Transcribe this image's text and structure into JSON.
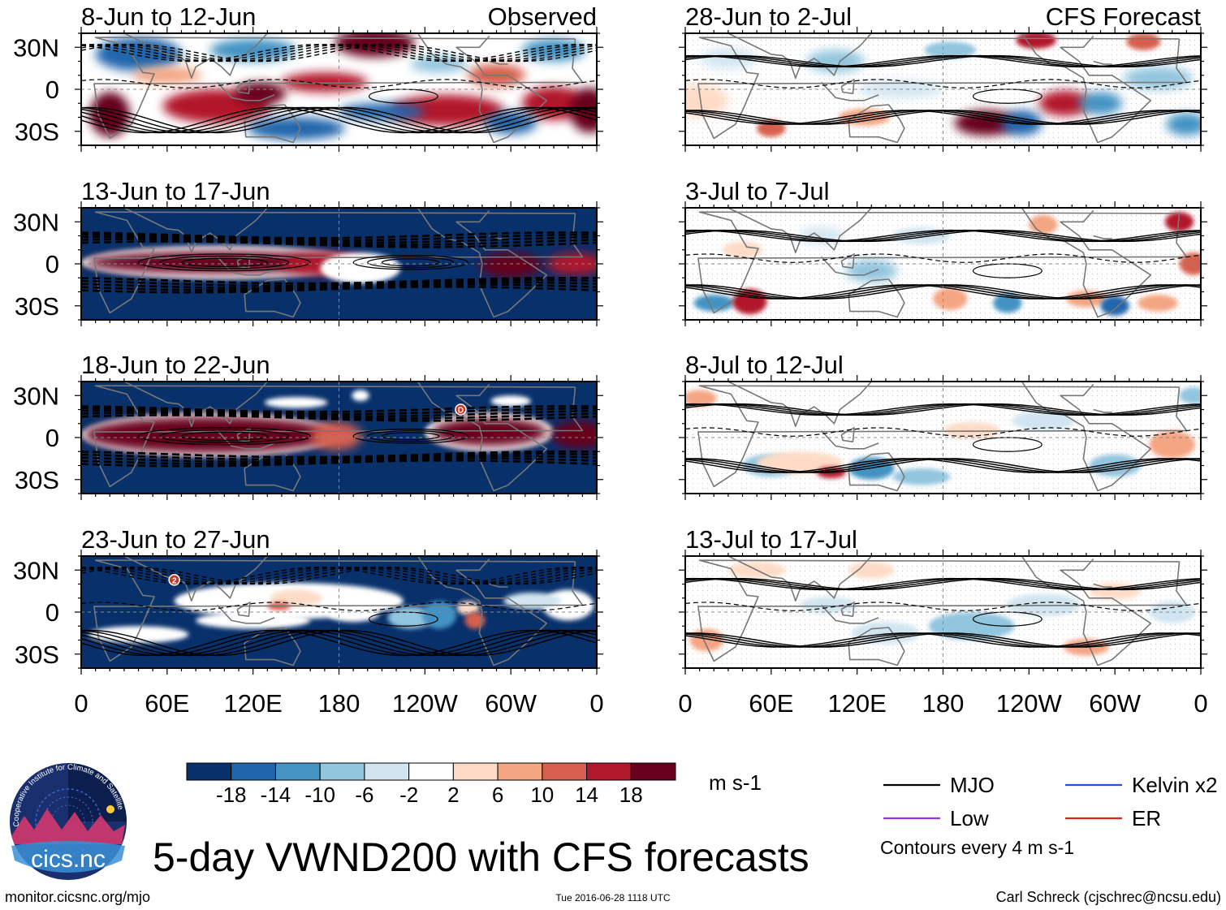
{
  "chart_data": {
    "type": "heatmap",
    "title": "5-day VWND200 with CFS forecasts",
    "variable": "VWND200",
    "units": "m s-1",
    "x_ticks": [
      "0",
      "60E",
      "120E",
      "180",
      "120W",
      "60W",
      "0"
    ],
    "x_ticks_deg": [
      0,
      60,
      120,
      180,
      240,
      300,
      360
    ],
    "y_ticks": [
      "30N",
      "0",
      "30S"
    ],
    "y_ticks_deg": [
      30,
      0,
      -30
    ],
    "xlim": [
      0,
      360
    ],
    "ylim": [
      -40,
      40
    ],
    "columns": [
      {
        "label": "Observed",
        "panels": [
          {
            "period": "8-Jun to 12-Jun",
            "regime": "observed",
            "markers": []
          },
          {
            "period": "13-Jun to 17-Jun",
            "regime": "kelvin",
            "markers": []
          },
          {
            "period": "18-Jun to 22-Jun",
            "regime": "kelvin2",
            "markers": [
              {
                "label": "D",
                "lon": 265,
                "lat": 20
              }
            ]
          },
          {
            "period": "23-Jun to 27-Jun",
            "regime": "weak",
            "markers": [
              {
                "label": "2",
                "lon": 65,
                "lat": 23
              }
            ]
          }
        ]
      },
      {
        "label": "CFS Forecast",
        "panels": [
          {
            "period": "28-Jun to 2-Jul",
            "regime": "fc1",
            "markers": []
          },
          {
            "period": "3-Jul to 7-Jul",
            "regime": "fc2",
            "markers": []
          },
          {
            "period": "8-Jul to 12-Jul",
            "regime": "fc3",
            "markers": []
          },
          {
            "period": "13-Jul to 17-Jul",
            "regime": "fc4",
            "markers": []
          }
        ]
      }
    ],
    "colorbar": {
      "colors": [
        "#08306b",
        "#2166ac",
        "#4393c3",
        "#92c5de",
        "#d1e5f0",
        "#ffffff",
        "#fddbc7",
        "#f4a582",
        "#d6604d",
        "#b2182b",
        "#67001f"
      ],
      "labels": [
        "-18",
        "-14",
        "-10",
        "-6",
        "-2",
        "2",
        "6",
        "10",
        "14",
        "18"
      ],
      "levels": [
        -18,
        -14,
        -10,
        -6,
        -2,
        2,
        6,
        10,
        14,
        18
      ]
    },
    "legend": {
      "items": [
        {
          "label": "MJO",
          "color": "#000000"
        },
        {
          "label": "Kelvin x2",
          "color": "#2255cc"
        },
        {
          "label": "Low",
          "color": "#9933ee"
        },
        {
          "label": "ER",
          "color": "#dd2211"
        }
      ],
      "note": "Contours every 4 m s-1"
    }
  },
  "logo": {
    "text": "cics.nc",
    "arc_text": "Cooperative Institute for Climate and Satellites"
  },
  "footer": {
    "url": "monitor.cicsnc.org/mjo",
    "timestamp": "Tue 2016-06-28 1118 UTC",
    "author": "Carl Schreck (cjschrec@ncsu.edu)"
  }
}
